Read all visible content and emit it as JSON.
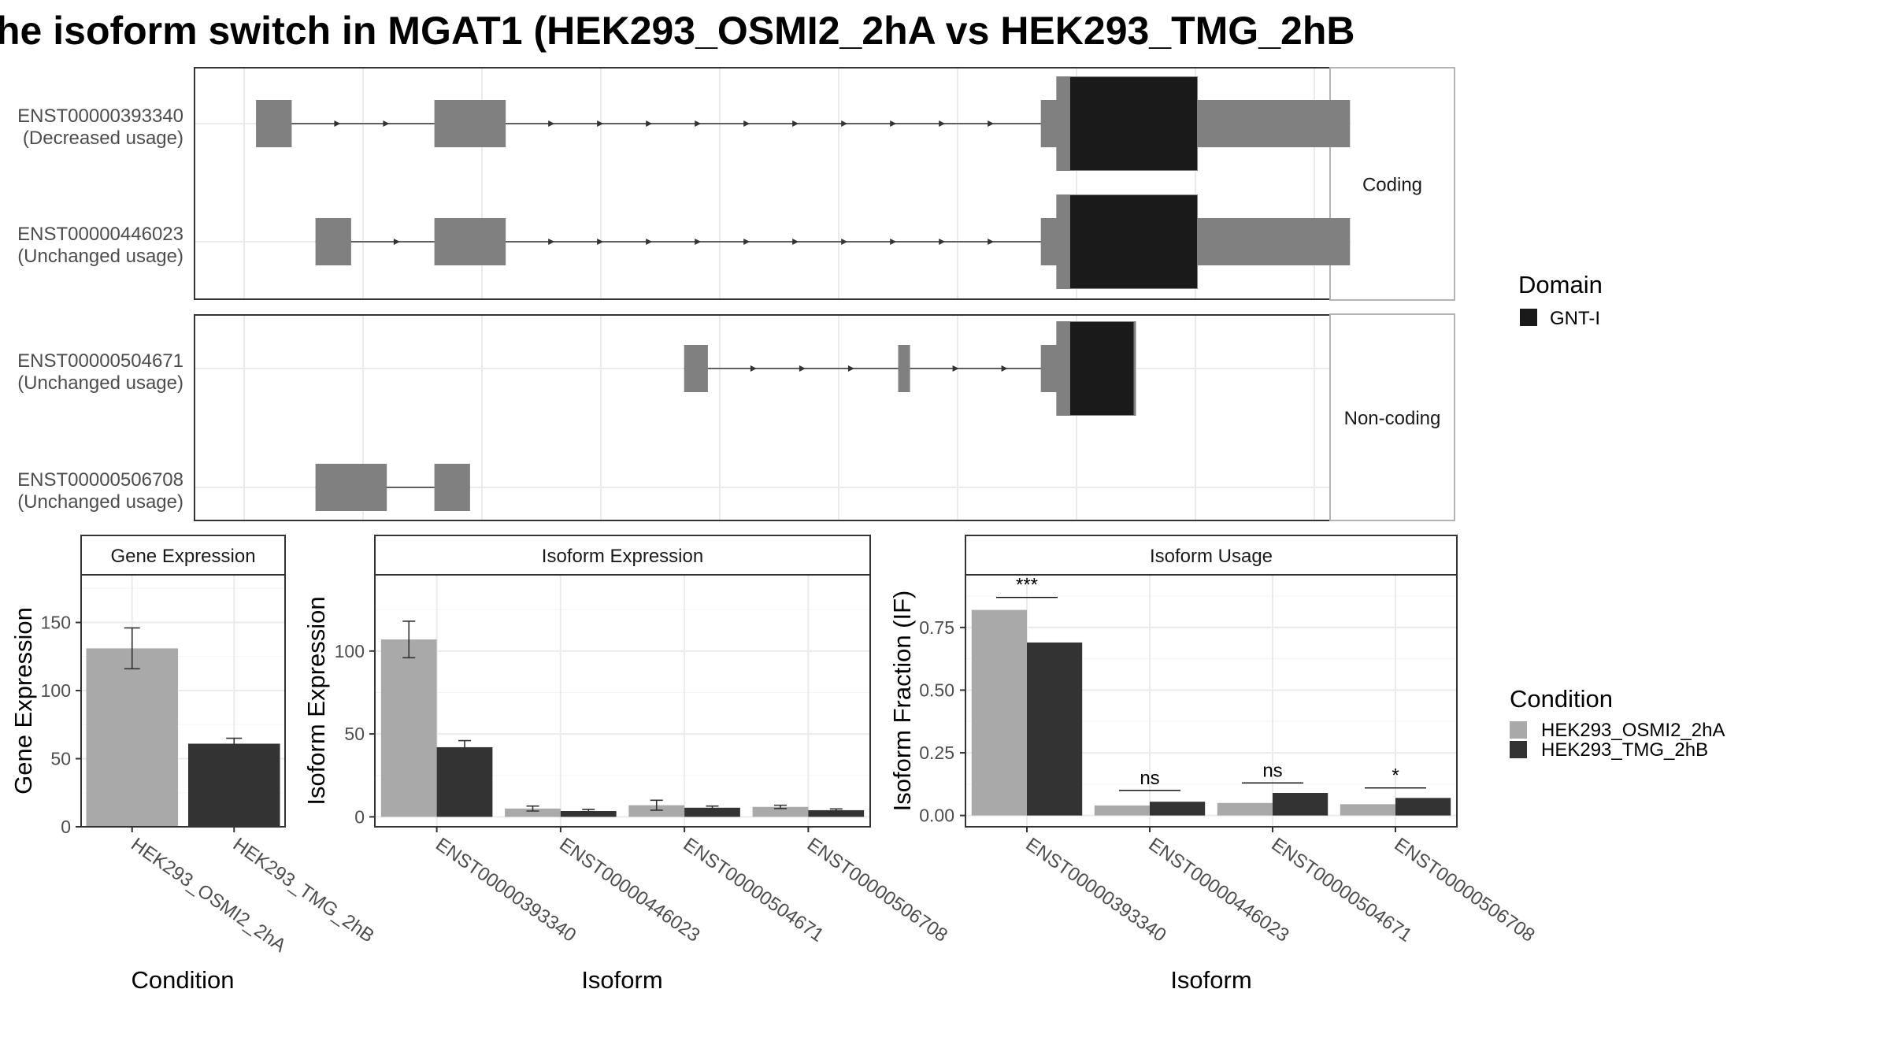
{
  "title": "he isoform switch in MGAT1 (HEK293_OSMI2_2hA vs HEK293_TMG_2hB",
  "chart_data": [
    {
      "type": "gene-structure",
      "panels": [
        "Coding",
        "Non-coding"
      ],
      "transcripts": [
        {
          "id": "ENST00000393340",
          "usage": "(Decreased usage)",
          "panel": "Coding",
          "exons": [
            [
              1,
              4
            ],
            [
              16,
              22
            ],
            [
              67,
              70
            ],
            [
              70,
              80
            ],
            [
              80,
              90
            ],
            [
              90,
              93
            ]
          ],
          "domains": [
            [
              70,
              80
            ]
          ]
        },
        {
          "id": "ENST00000446023",
          "usage": "(Unchanged usage)",
          "panel": "Coding",
          "exons": [
            [
              6,
              9
            ],
            [
              16,
              22
            ],
            [
              67,
              70
            ],
            [
              70,
              80
            ],
            [
              80,
              90
            ],
            [
              90,
              93
            ]
          ],
          "domains": [
            [
              70,
              80
            ]
          ]
        },
        {
          "id": "ENST00000504671",
          "usage": "(Unchanged usage)",
          "panel": "Non-coding",
          "exons": [
            [
              37,
              39
            ],
            [
              55,
              56
            ],
            [
              67,
              70
            ],
            [
              70,
              75
            ]
          ],
          "domains": [
            [
              70,
              74.8
            ]
          ]
        },
        {
          "id": "ENST00000506708",
          "usage": "(Unchanged usage)",
          "panel": "Non-coding",
          "exons": [
            [
              6,
              12
            ],
            [
              16,
              19
            ]
          ],
          "domains": []
        }
      ],
      "domain_legend": {
        "title": "Domain",
        "items": [
          {
            "label": "GNT-I",
            "color": "#1a1a1a"
          }
        ]
      }
    },
    {
      "type": "bar",
      "strip": "Gene Expression",
      "xlabel": "Condition",
      "ylabel": "Gene Expression",
      "ylim": [
        0,
        185
      ],
      "yticks": [
        0,
        50,
        100,
        150
      ],
      "categories": [
        "HEK293_OSMI2_2hA",
        "HEK293_TMG_2hB"
      ],
      "values": [
        131,
        61
      ],
      "errors": [
        15,
        4
      ]
    },
    {
      "type": "bar",
      "strip": "Isoform Expression",
      "xlabel": "Isoform",
      "ylabel": "Isoform Expression",
      "ylim": [
        -6,
        146
      ],
      "yticks": [
        0,
        50,
        100
      ],
      "categories": [
        "ENST00000393340",
        "ENST00000446023",
        "ENST00000504671",
        "ENST00000506708"
      ],
      "series": [
        {
          "name": "HEK293_OSMI2_2hA",
          "values": [
            107,
            5,
            7,
            6
          ],
          "errors": [
            11,
            1.5,
            3,
            1
          ]
        },
        {
          "name": "HEK293_TMG_2hB",
          "values": [
            42,
            3.5,
            5.5,
            4
          ],
          "errors": [
            4,
            1,
            1,
            0.8
          ]
        }
      ]
    },
    {
      "type": "bar",
      "strip": "Isoform Usage",
      "xlabel": "Isoform",
      "ylabel": "Isoform Fraction (IF)",
      "ylim": [
        -0.045,
        0.96
      ],
      "yticks": [
        "0.00",
        "0.25",
        "0.50",
        "0.75"
      ],
      "categories": [
        "ENST00000393340",
        "ENST00000446023",
        "ENST00000504671",
        "ENST00000506708"
      ],
      "series": [
        {
          "name": "HEK293_OSMI2_2hA",
          "values": [
            0.82,
            0.04,
            0.05,
            0.045
          ]
        },
        {
          "name": "HEK293_TMG_2hB",
          "values": [
            0.69,
            0.055,
            0.09,
            0.07
          ]
        }
      ],
      "significance": [
        "***",
        "ns",
        "ns",
        "*"
      ],
      "sig_levels": [
        0.87,
        0.1,
        0.13,
        0.11
      ]
    }
  ],
  "condition_legend": {
    "title": "Condition",
    "items": [
      {
        "label": "HEK293_OSMI2_2hA",
        "color": "#a9a9a9"
      },
      {
        "label": "HEK293_TMG_2hB",
        "color": "#333333"
      }
    ]
  },
  "colors": {
    "exon": "#808080",
    "domain": "#1a1a1a",
    "grid": "#ebebeb",
    "light_bar": "#a9a9a9",
    "dark_bar": "#333333"
  }
}
